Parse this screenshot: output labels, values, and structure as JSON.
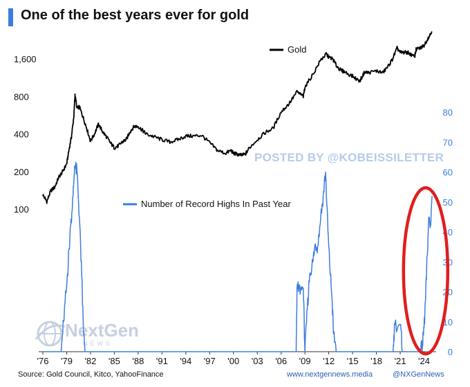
{
  "header": {
    "title": "One of the best years ever for gold"
  },
  "watermark": "POSTED BY @KOBEISSILETTER",
  "logo": {
    "name": "NextGen",
    "sub": "NEWS",
    "icon": "globe-icon"
  },
  "footer": {
    "source": "Source: Gold Council, Kitco, YahooFinance",
    "website": "www.nextgennews.media",
    "handle": "@NXGenNews"
  },
  "chart_data": {
    "type": "line",
    "title": "One of the best years ever for gold",
    "x_ticks": [
      "'76",
      "'79",
      "'82",
      "'85",
      "'88",
      "'91",
      "'94",
      "'97",
      "'00",
      "'03",
      "'06",
      "'09",
      "'12",
      "'15",
      "'18",
      "'21",
      "'24"
    ],
    "xlim": [
      1976,
      2025
    ],
    "y_left": {
      "scale": "log",
      "ticks": [
        100,
        200,
        400,
        800,
        1600
      ],
      "tick_labels": [
        "100",
        "200",
        "400",
        "800",
        "1,600"
      ]
    },
    "y_right": {
      "ticks": [
        0,
        10,
        20,
        30,
        40,
        50,
        60,
        70,
        80
      ],
      "ylim": [
        0,
        80
      ]
    },
    "legend_placement": "inline",
    "colors": {
      "gold": "#000000",
      "record_highs": "#3b7ddd",
      "highlight": "#e01e1e"
    },
    "annotations": [
      {
        "type": "ellipse",
        "color": "#e01e1e",
        "x_center": 2024.2,
        "y_center_right": 27
      }
    ],
    "series": [
      {
        "name": "Gold",
        "axis": "left",
        "x": [
          1976,
          1976.5,
          1977,
          1977.5,
          1978,
          1978.5,
          1979,
          1979.3,
          1979.6,
          1979.9,
          1980.05,
          1980.3,
          1980.6,
          1981,
          1981.5,
          1982,
          1982.5,
          1983,
          1983.5,
          1984,
          1984.5,
          1985,
          1985.5,
          1986,
          1986.5,
          1987,
          1987.5,
          1988,
          1988.5,
          1989,
          1990,
          1991,
          1992,
          1993,
          1994,
          1995,
          1996,
          1997,
          1998,
          1999,
          1999.7,
          2000,
          2000.5,
          2001,
          2001.5,
          2002,
          2003,
          2004,
          2005,
          2006,
          2007,
          2008,
          2008.8,
          2009,
          2010,
          2011,
          2011.7,
          2012,
          2012.5,
          2013,
          2013.5,
          2014,
          2015,
          2015.9,
          2016.5,
          2017,
          2018,
          2018.8,
          2019.5,
          2020,
          2020.6,
          2021,
          2021.5,
          2022,
          2022.8,
          2023,
          2023.5,
          2024,
          2024.5,
          2025
        ],
        "values": [
          130,
          115,
          140,
          150,
          180,
          200,
          230,
          300,
          380,
          550,
          830,
          640,
          660,
          560,
          450,
          350,
          400,
          480,
          420,
          380,
          340,
          310,
          320,
          345,
          360,
          420,
          460,
          460,
          430,
          400,
          380,
          360,
          345,
          360,
          385,
          385,
          390,
          340,
          295,
          280,
          295,
          280,
          275,
          270,
          275,
          310,
          360,
          410,
          445,
          600,
          700,
          870,
          800,
          950,
          1200,
          1570,
          1750,
          1650,
          1600,
          1400,
          1300,
          1260,
          1160,
          1060,
          1250,
          1240,
          1280,
          1240,
          1400,
          1580,
          1950,
          1800,
          1800,
          1800,
          1650,
          1900,
          1950,
          2050,
          2350,
          2650
        ]
      },
      {
        "name": "Number of Record Highs In Past Year",
        "axis": "right",
        "x": [
          1976,
          1978.3,
          1978.6,
          1979,
          1979.2,
          1979.5,
          1979.8,
          1980,
          1980.3,
          1980.6,
          1980.9,
          1981.1,
          1981.3,
          2007.9,
          2008,
          2008.2,
          2008.8,
          2009,
          2009.3,
          2009.6,
          2010,
          2010.3,
          2010.6,
          2011,
          2011.3,
          2011.6,
          2011.9,
          2012.1,
          2012.4,
          2012.6,
          2013,
          2020.1,
          2020.3,
          2021,
          2021.3,
          2023.5,
          2023.8,
          2024,
          2024.2,
          2024.4,
          2024.6,
          2024.8,
          2025
        ],
        "values": [
          0,
          0,
          10,
          22,
          30,
          42,
          52,
          62,
          60,
          45,
          25,
          8,
          0,
          0,
          21,
          21,
          21,
          0,
          14,
          26,
          30,
          36,
          35,
          45,
          52,
          60,
          40,
          30,
          18,
          6,
          0,
          0,
          9,
          9,
          0,
          0,
          2,
          8,
          18,
          32,
          45,
          42,
          52
        ]
      }
    ]
  }
}
